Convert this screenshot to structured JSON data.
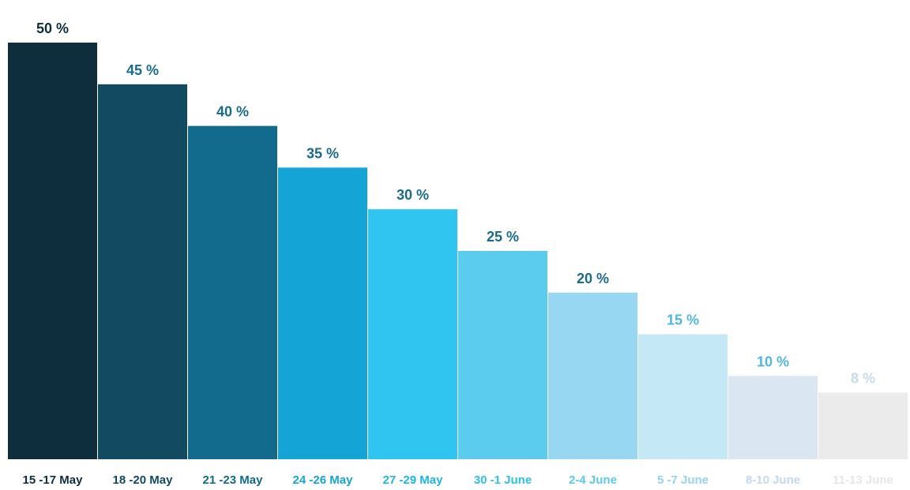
{
  "chart_data": {
    "type": "bar",
    "categories": [
      "15 -17 May",
      "18 -20 May",
      "21 -23 May",
      "24 -26 May",
      "27 -29  May",
      "30 -1 June",
      "2-4 June",
      "5 -7 June",
      "8-10 June",
      "11-13 June"
    ],
    "values": [
      50,
      45,
      40,
      35,
      30,
      25,
      20,
      15,
      10,
      8
    ],
    "value_labels": [
      "50 %",
      "45 %",
      "40  %",
      "35  %",
      "30  %",
      "25  %",
      "20  %",
      "15  %",
      "10  %",
      "8  %"
    ],
    "ylim": [
      0,
      50
    ],
    "grid": false,
    "legend": "none",
    "bar_colors": [
      "#0e2e3d",
      "#124a61",
      "#126a8c",
      "#15a4d6",
      "#2fc5f0",
      "#5bcbee",
      "#97d7f2",
      "#c5e8f6",
      "#dbe6f3",
      "#ebebeb"
    ],
    "value_label_colors": [
      "#0e2e3d",
      "#1a6a8a",
      "#1a6a8a",
      "#1a6a8a",
      "#1a6a8a",
      "#1a6a8a",
      "#1a6a8a",
      "#4fb7dc",
      "#4fb7dc",
      "#c8dce8"
    ],
    "category_label_colors": [
      "#0e2e3d",
      "#124a61",
      "#126a8c",
      "#15a4d6",
      "#1fb5e6",
      "#2fc0ee",
      "#5bc9ef",
      "#97d3ee",
      "#c2d8ec",
      "#e6e6e6"
    ]
  }
}
